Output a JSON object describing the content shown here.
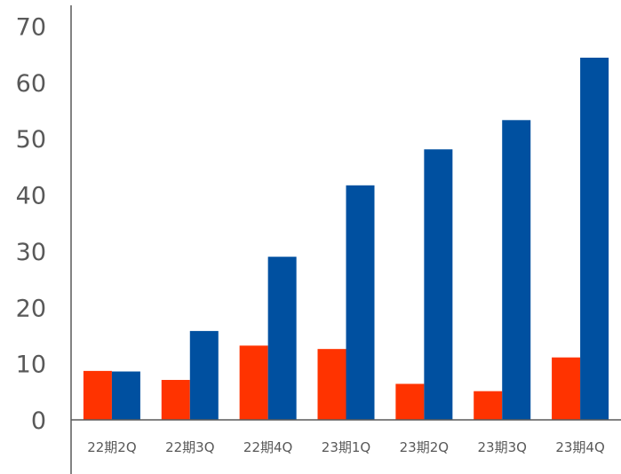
{
  "chart_data": {
    "type": "bar",
    "categories": [
      "22期2Q",
      "22期3Q",
      "22期4Q",
      "23期1Q",
      "23期2Q",
      "23期3Q",
      "23期4Q"
    ],
    "series": [
      {
        "values": [
          8.7,
          7.1,
          13.2,
          12.6,
          6.4,
          5.1,
          11.1
        ],
        "color": "#ff3300"
      },
      {
        "values": [
          8.6,
          15.8,
          29.0,
          41.7,
          48.1,
          53.3,
          64.4
        ],
        "color": "#0050a0"
      }
    ],
    "yticks": [
      0,
      10,
      20,
      30,
      40,
      50,
      60,
      70
    ],
    "ylim": [
      0,
      70
    ],
    "grid": false,
    "legend": "none"
  }
}
